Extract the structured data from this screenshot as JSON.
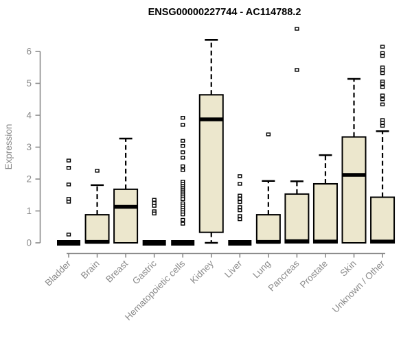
{
  "title": "ENSG00000227744 - AC114788.2",
  "chart_data": {
    "type": "boxplot",
    "title": "ENSG00000227744 - AC114788.2",
    "xlabel": "",
    "ylabel": "Expression",
    "ylim": [
      0,
      6.85
    ],
    "yticks": [
      0,
      1,
      2,
      3,
      4,
      5,
      6
    ],
    "grid": false,
    "legend": "none",
    "colors": {
      "box_fill": "#ECE7CD",
      "box_stroke": "#000000",
      "axis_color": "#8a8a8a",
      "label_color": "#8a8a8a",
      "outlier_fill": "#ffffff",
      "outlier_stroke": "#000000"
    },
    "categories": [
      "Bladder",
      "Brain",
      "Breast",
      "Gastric",
      "Hematopoietic cells",
      "Kidney",
      "Liver",
      "Lung",
      "Pancreas",
      "Prostate",
      "Skin",
      "Unknown / Other"
    ],
    "series": [
      {
        "name": "Bladder",
        "slug": "bladder",
        "q1": 0,
        "median": 0,
        "q3": 0,
        "whisker_low": 0,
        "whisker_high": 0,
        "outliers": [
          2.58,
          2.35,
          1.83,
          1.38,
          1.29,
          0.26
        ]
      },
      {
        "name": "Brain",
        "slug": "brain",
        "q1": 0,
        "median": 0.03,
        "q3": 0.88,
        "whisker_low": 0,
        "whisker_high": 1.81,
        "outliers": [
          2.26
        ]
      },
      {
        "name": "Breast",
        "slug": "breast",
        "q1": 0,
        "median": 1.13,
        "q3": 1.68,
        "whisker_low": 0,
        "whisker_high": 3.27,
        "outliers": []
      },
      {
        "name": "Gastric",
        "slug": "gastric",
        "q1": 0,
        "median": 0,
        "q3": 0,
        "whisker_low": 0,
        "whisker_high": 0,
        "outliers": [
          1.35,
          1.25,
          1.16,
          0.99,
          0.92
        ]
      },
      {
        "name": "Hematopoietic cells",
        "slug": "hematopoietic-cells",
        "q1": 0,
        "median": 0,
        "q3": 0,
        "whisker_low": 0,
        "whisker_high": 0,
        "outliers": [
          3.92,
          3.7,
          3.2,
          3.04,
          2.84,
          2.67,
          2.4,
          2.28,
          1.92,
          1.85,
          1.79,
          1.73,
          1.67,
          1.61,
          1.55,
          1.49,
          1.43,
          1.37,
          1.24,
          1.17,
          1.1,
          1.03,
          0.96,
          0.89,
          0.72,
          0.6
        ]
      },
      {
        "name": "Kidney",
        "slug": "kidney",
        "q1": 0.33,
        "median": 3.87,
        "q3": 4.64,
        "whisker_low": 0,
        "whisker_high": 6.36,
        "outliers": []
      },
      {
        "name": "Liver",
        "slug": "liver",
        "q1": 0,
        "median": 0,
        "q3": 0,
        "whisker_low": 0,
        "whisker_high": 0,
        "outliers": [
          2.09,
          1.85,
          1.48,
          1.38,
          1.28,
          1.12,
          1.02,
          0.84,
          0.74
        ]
      },
      {
        "name": "Lung",
        "slug": "lung",
        "q1": 0,
        "median": 0.03,
        "q3": 0.88,
        "whisker_low": 0,
        "whisker_high": 1.94,
        "outliers": [
          3.4
        ]
      },
      {
        "name": "Pancreas",
        "slug": "pancreas",
        "q1": 0,
        "median": 0.05,
        "q3": 1.53,
        "whisker_low": 0,
        "whisker_high": 1.93,
        "outliers": [
          6.71,
          5.42
        ]
      },
      {
        "name": "Prostate",
        "slug": "prostate",
        "q1": 0,
        "median": 0.04,
        "q3": 1.85,
        "whisker_low": 0,
        "whisker_high": 2.75,
        "outliers": []
      },
      {
        "name": "Skin",
        "slug": "skin",
        "q1": 0,
        "median": 2.13,
        "q3": 3.32,
        "whisker_low": 0,
        "whisker_high": 5.14,
        "outliers": []
      },
      {
        "name": "Unknown / Other",
        "slug": "unknown-other",
        "q1": 0,
        "median": 0.04,
        "q3": 1.43,
        "whisker_low": 0,
        "whisker_high": 3.5,
        "outliers": [
          6.15,
          5.95,
          5.86,
          5.5,
          5.42,
          5.32,
          5.06,
          4.99,
          4.88,
          4.62,
          4.5,
          4.34,
          3.85,
          3.76,
          3.67
        ]
      }
    ]
  }
}
